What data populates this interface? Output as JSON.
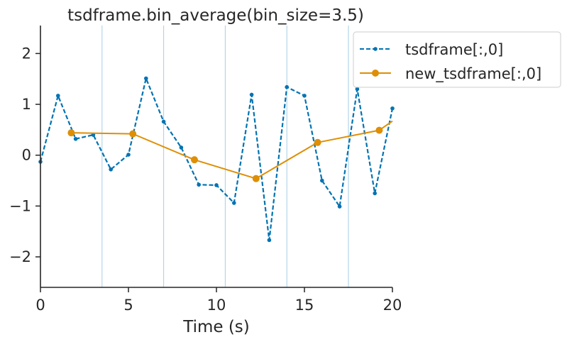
{
  "chart_data": {
    "type": "line",
    "title": "tsdframe.bin_average(bin_size=3.5)",
    "xlabel": "Time (s)",
    "ylabel": "",
    "xlim": [
      0,
      20
    ],
    "ylim": [
      -2.6,
      2.55
    ],
    "xticks": [
      0,
      5,
      10,
      15,
      20
    ],
    "xtick_labels": [
      "0",
      "5",
      "10",
      "15",
      "20"
    ],
    "yticks": [
      -2,
      -1,
      0,
      1,
      2
    ],
    "ytick_labels": [
      "−2",
      "−1",
      "0",
      "1",
      "2"
    ],
    "bin_edges": [
      3.5,
      7,
      10.5,
      14,
      17.5
    ],
    "grid": false,
    "legend_position": "top-right",
    "series": [
      {
        "name": "tsdframe[:,0]",
        "color": "#0173b2",
        "style": "dashed",
        "marker": "small-dot",
        "x": [
          0,
          1,
          2,
          3,
          4,
          5,
          6,
          7,
          8,
          9,
          10,
          11,
          12,
          13,
          14,
          15,
          16,
          17,
          18,
          19,
          20
        ],
        "y": [
          -0.13,
          1.17,
          0.32,
          0.4,
          -0.28,
          0.01,
          1.51,
          0.66,
          0.15,
          -0.58,
          -0.59,
          -0.94,
          1.19,
          -1.67,
          1.34,
          1.17,
          -0.5,
          -1.01,
          1.3,
          -0.75,
          0.92
        ]
      },
      {
        "name": "new_tsdframe[:,0]",
        "color": "#de8f05",
        "style": "solid",
        "marker": "large-dot",
        "x": [
          1.75,
          5.25,
          8.75,
          12.25,
          15.75,
          19.25,
          20
        ],
        "y": [
          0.44,
          0.42,
          -0.09,
          -0.46,
          0.25,
          0.49,
          0.67
        ]
      }
    ]
  }
}
